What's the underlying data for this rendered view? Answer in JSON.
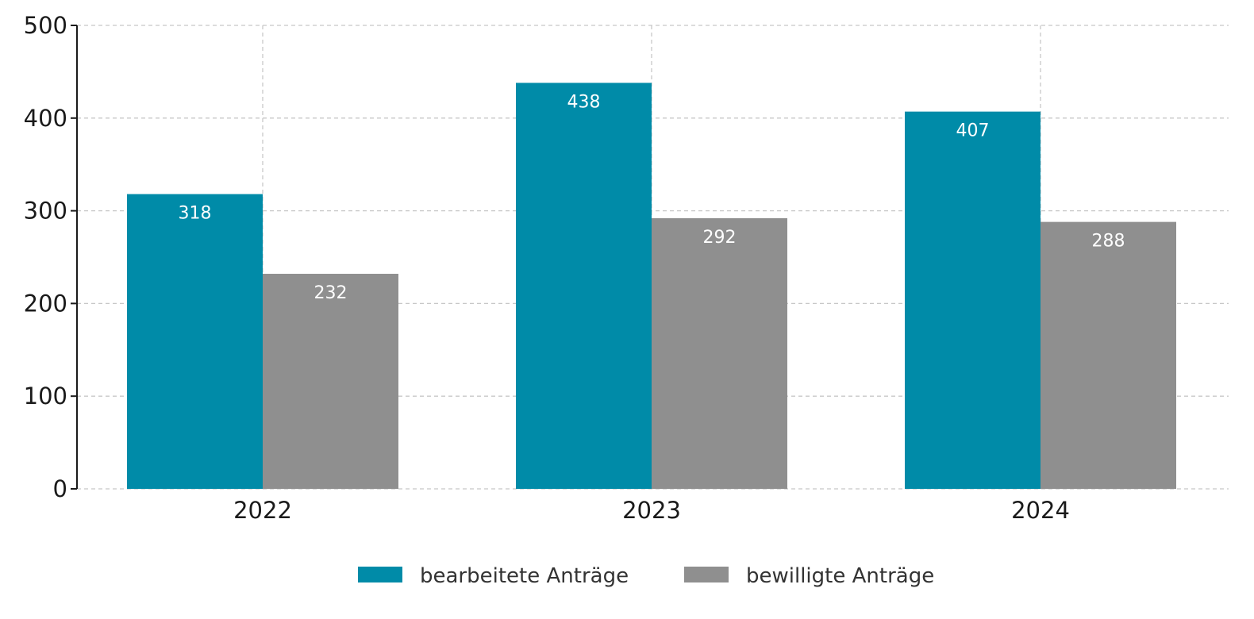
{
  "chart_data": {
    "type": "bar",
    "categories": [
      "2022",
      "2023",
      "2024"
    ],
    "series": [
      {
        "name": "bearbeitete Anträge",
        "values": [
          318,
          438,
          407
        ],
        "color": "#008ba8"
      },
      {
        "name": "bewilligte Anträge",
        "values": [
          232,
          292,
          288
        ],
        "color": "#8f8f8f"
      }
    ],
    "ylim": [
      0,
      500
    ],
    "yticks": [
      "0",
      "100",
      "200",
      "300",
      "400",
      "500"
    ],
    "grid": true,
    "legend": "bottom-center",
    "data_labels": "inside-top"
  }
}
